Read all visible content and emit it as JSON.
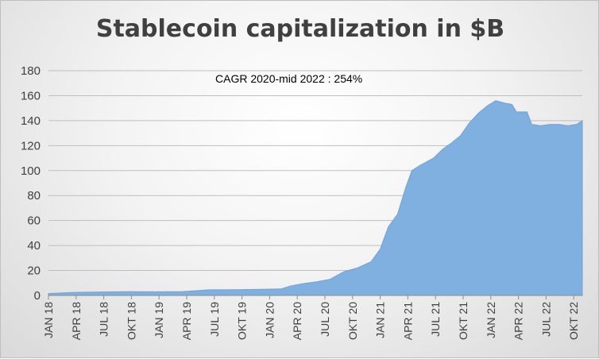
{
  "chart_data": {
    "type": "area",
    "title": "Stablecoin capitalization in $B",
    "annotation": "CAGR 2020-mid 2022 : 254%",
    "xlabel": "",
    "ylabel": "",
    "ylim": [
      0,
      180
    ],
    "yticks": [
      0,
      20,
      40,
      60,
      80,
      100,
      120,
      140,
      160,
      180
    ],
    "xticks": [
      "JAN 18",
      "APR 18",
      "JUL 18",
      "OKT 18",
      "JAN 19",
      "APR 19",
      "JUL 19",
      "OKT 19",
      "JAN 20",
      "APR 20",
      "JUL 20",
      "OKT 20",
      "JAN 21",
      "APR 21",
      "JUL 21",
      "OKT 21",
      "JAN 22",
      "APR 22",
      "JUL 22",
      "OKT 22"
    ],
    "grid": true,
    "legend": "none",
    "fill_color": "#7fb0df",
    "series": [
      {
        "x": [
          "2018-01-01",
          "2018-04-01",
          "2018-07-01",
          "2018-10-01",
          "2019-01-01",
          "2019-04-01",
          "2019-07-01",
          "2019-10-01",
          "2020-01-01",
          "2020-03-01",
          "2020-04-01",
          "2020-05-15",
          "2020-07-01",
          "2020-08-15",
          "2020-10-01",
          "2020-11-15",
          "2021-01-01",
          "2021-02-01",
          "2021-03-01",
          "2021-04-01",
          "2021-05-01",
          "2021-05-20",
          "2021-06-15",
          "2021-07-01",
          "2021-08-01",
          "2021-09-01",
          "2021-10-01",
          "2021-11-01",
          "2021-12-01",
          "2022-01-01",
          "2022-02-01",
          "2022-03-01",
          "2022-04-01",
          "2022-04-25",
          "2022-05-10",
          "2022-05-25",
          "2022-06-15",
          "2022-07-01",
          "2022-08-01",
          "2022-09-01",
          "2022-10-01",
          "2022-11-01",
          "2022-12-01",
          "2022-12-20"
        ],
        "y": [
          1.5,
          2.5,
          2.8,
          3.0,
          2.9,
          3.1,
          4.5,
          4.6,
          4.9,
          5.2,
          7.5,
          9.5,
          11,
          13,
          19,
          22,
          27,
          37,
          55,
          65,
          88,
          100,
          104,
          106,
          110,
          117,
          122,
          128,
          138,
          146,
          152,
          156,
          154,
          153,
          147,
          147,
          147,
          137,
          136,
          137,
          137,
          136,
          137,
          140
        ]
      }
    ]
  }
}
